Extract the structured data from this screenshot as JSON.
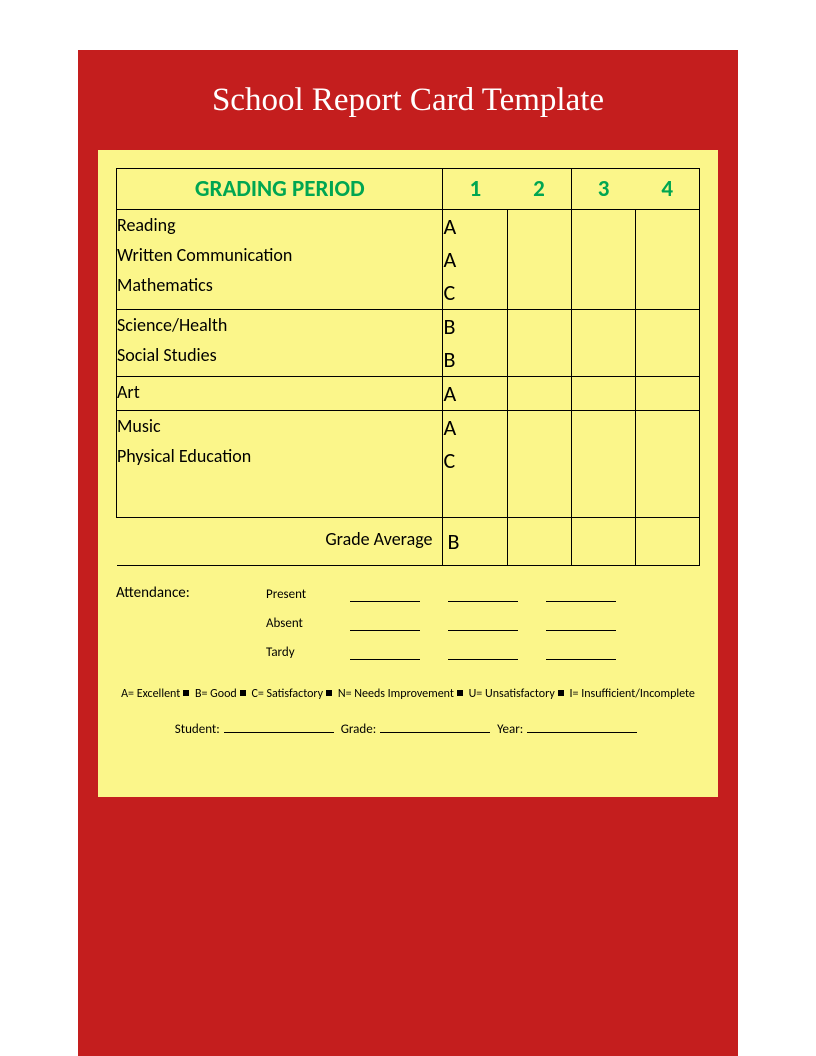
{
  "title": "School Report Card Template",
  "header": {
    "label": "GRADING PERIOD",
    "periods": [
      "1",
      "2",
      "3",
      "4"
    ]
  },
  "groups": [
    {
      "subjects": [
        "Reading",
        "Written Communication",
        "Mathematics"
      ],
      "grades_p1": [
        "A",
        "A",
        "C"
      ]
    },
    {
      "subjects": [
        "Science/Health",
        "Social Studies"
      ],
      "grades_p1": [
        "B",
        "B"
      ]
    },
    {
      "subjects": [
        "Art"
      ],
      "grades_p1": [
        "A"
      ]
    },
    {
      "subjects": [
        "Music",
        "Physical Education"
      ],
      "grades_p1": [
        "A",
        "C"
      ]
    }
  ],
  "average": {
    "label": "Grade Average",
    "p1": "B"
  },
  "attendance": {
    "label": "Attendance:",
    "rows": [
      "Present",
      "Absent",
      "Tardy"
    ]
  },
  "legend": {
    "items": [
      "A= Excellent",
      "B= Good",
      "C= Satisfactory",
      "N= Needs Improvement",
      "U= Unsatisfactory",
      "I= Insufficient/Incomplete"
    ]
  },
  "signoff": {
    "student": "Student:",
    "grade": "Grade:",
    "year": "Year:"
  },
  "colors": {
    "outer_bg": "#c41e1e",
    "inner_bg": "#fbf68a",
    "title_text": "#ffffff",
    "header_text": "#00a651",
    "border": "#000000"
  }
}
